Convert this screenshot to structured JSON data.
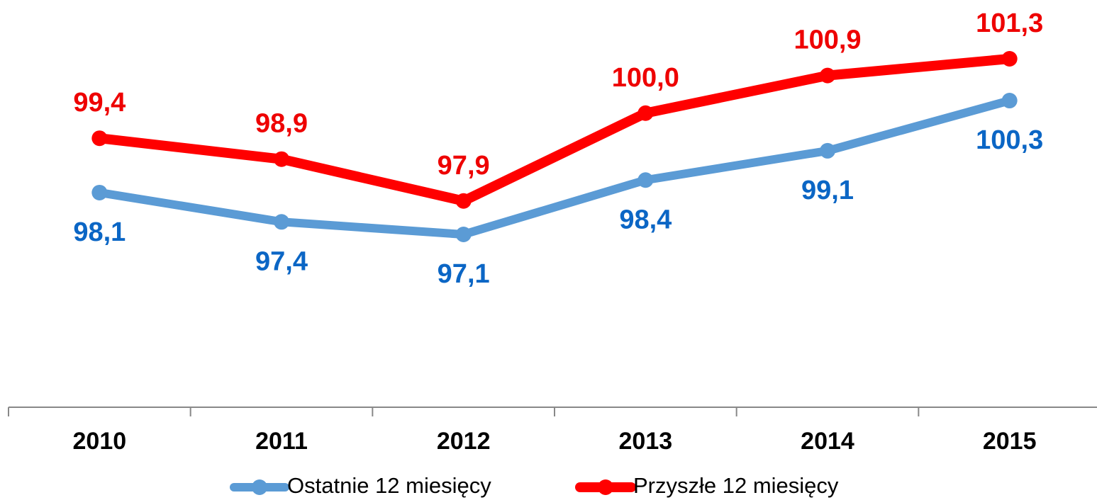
{
  "chart_data": {
    "type": "line",
    "categories": [
      "2010",
      "2011",
      "2012",
      "2013",
      "2014",
      "2015"
    ],
    "series": [
      {
        "name": "Ostatnie 12 miesięcy",
        "color": "#5b9bd5",
        "label_color": "#0b66c5",
        "values": [
          98.1,
          97.4,
          97.1,
          98.4,
          99.1,
          100.3
        ],
        "value_labels": [
          "98,1",
          "97,4",
          "97,1",
          "98,4",
          "99,1",
          "100,3"
        ],
        "label_position": "below"
      },
      {
        "name": "Przyszłe 12 miesięcy",
        "color": "#ff0000",
        "label_color": "#ee0000",
        "values": [
          99.4,
          98.9,
          97.9,
          100.0,
          100.9,
          101.3
        ],
        "value_labels": [
          "99,4",
          "98,9",
          "97,9",
          "100,0",
          "100,9",
          "101,3"
        ],
        "label_position": "above"
      }
    ],
    "legend": "bottom"
  }
}
